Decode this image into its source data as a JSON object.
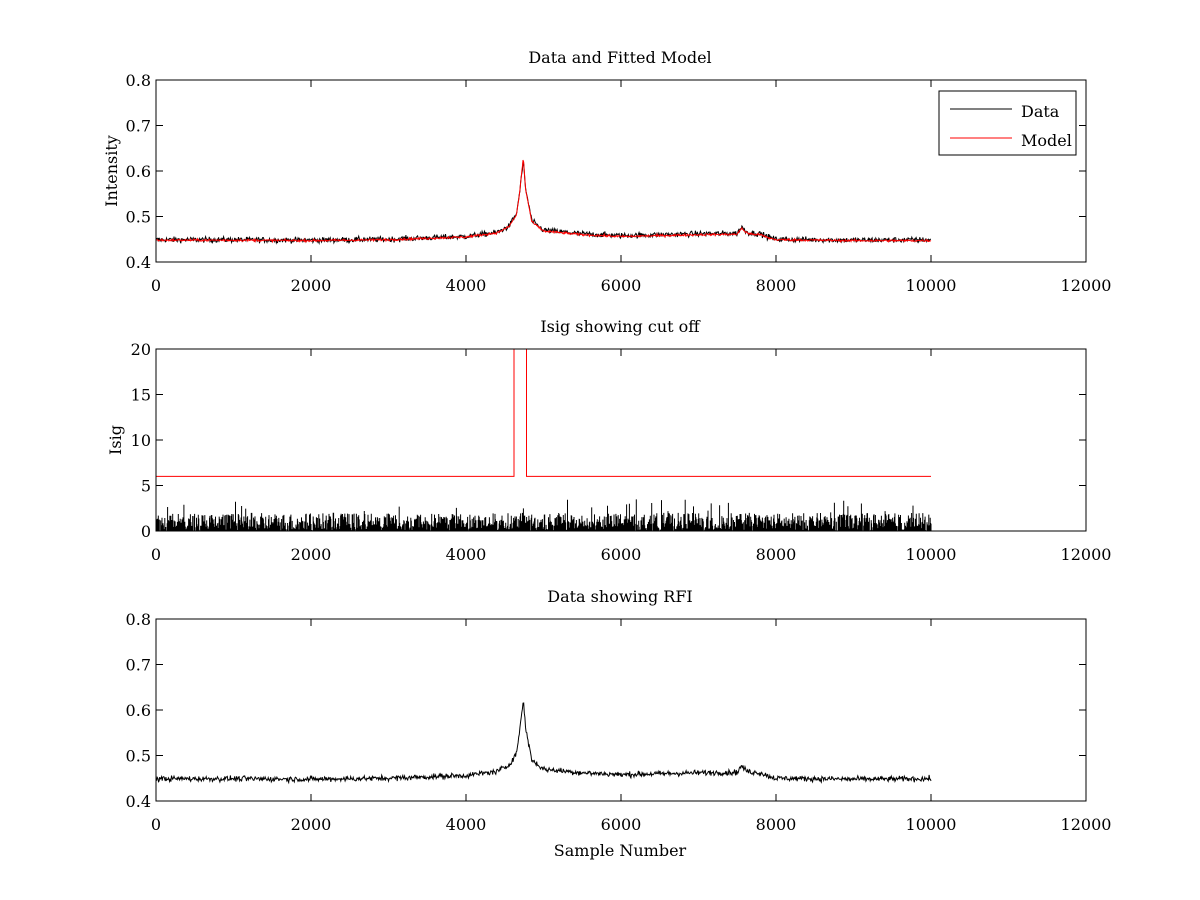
{
  "figure": {
    "background": "#ffffff",
    "data_color": "#000000",
    "model_color": "#ff0000"
  },
  "chart_data": [
    {
      "type": "line",
      "title": "Data and Fitted Model",
      "xlabel": "",
      "ylabel": "Intensity",
      "xlim": [
        0,
        12000
      ],
      "ylim": [
        0.4,
        0.8
      ],
      "xticks": [
        "0",
        "2000",
        "4000",
        "6000",
        "8000",
        "10000",
        "12000"
      ],
      "yticks": [
        "0.4",
        "0.5",
        "0.6",
        "0.7",
        "0.8"
      ],
      "grid": false,
      "legend": {
        "placement": "top-right",
        "entries": [
          "Data",
          "Model"
        ]
      },
      "series": [
        {
          "name": "Data",
          "color": "#000000",
          "style": "noisy",
          "noise": 0.006,
          "x": [
            0,
            1000,
            2000,
            3000,
            4000,
            4400,
            4550,
            4650,
            4690,
            4720,
            4740,
            4770,
            4850,
            5000,
            5500,
            6000,
            7000,
            7500,
            7560,
            7590,
            7650,
            7800,
            7900,
            8000,
            9000,
            10000
          ],
          "y": [
            0.449,
            0.449,
            0.448,
            0.45,
            0.456,
            0.465,
            0.478,
            0.505,
            0.55,
            0.595,
            0.62,
            0.56,
            0.49,
            0.47,
            0.462,
            0.458,
            0.462,
            0.463,
            0.478,
            0.47,
            0.464,
            0.462,
            0.455,
            0.45,
            0.448,
            0.449
          ]
        },
        {
          "name": "Model",
          "color": "#ff0000",
          "style": "smooth",
          "x": [
            0,
            1000,
            2000,
            3000,
            4000,
            4400,
            4550,
            4650,
            4690,
            4720,
            4740,
            4770,
            4850,
            5000,
            5500,
            6000,
            7000,
            7500,
            7560,
            7590,
            7650,
            7800,
            7900,
            8000,
            9000,
            10000
          ],
          "y": [
            0.448,
            0.448,
            0.447,
            0.449,
            0.455,
            0.464,
            0.477,
            0.503,
            0.548,
            0.6,
            0.628,
            0.558,
            0.488,
            0.468,
            0.46,
            0.456,
            0.46,
            0.461,
            0.475,
            0.468,
            0.462,
            0.46,
            0.453,
            0.449,
            0.447,
            0.447
          ]
        }
      ]
    },
    {
      "type": "line",
      "title": "Isig showing cut off",
      "xlabel": "",
      "ylabel": "Isig",
      "xlim": [
        0,
        12000
      ],
      "ylim": [
        0,
        20
      ],
      "xticks": [
        "0",
        "2000",
        "4000",
        "6000",
        "8000",
        "10000",
        "12000"
      ],
      "yticks": [
        "0",
        "5",
        "10",
        "15",
        "20"
      ],
      "grid": false,
      "series": [
        {
          "name": "Isig",
          "color": "#000000",
          "style": "spiky",
          "x_start": 0,
          "x_end": 10000,
          "typical_max": 2.0,
          "peak_max": 3.5
        },
        {
          "name": "Cut off",
          "color": "#ff0000",
          "style": "step",
          "x": [
            0,
            4620,
            4620,
            4780,
            4780,
            10000
          ],
          "y": [
            6,
            6,
            20,
            20,
            6,
            6
          ]
        }
      ]
    },
    {
      "type": "line",
      "title": "Data showing RFI",
      "xlabel": "Sample Number",
      "ylabel": "",
      "xlim": [
        0,
        12000
      ],
      "ylim": [
        0.4,
        0.8
      ],
      "xticks": [
        "0",
        "2000",
        "4000",
        "6000",
        "8000",
        "10000",
        "12000"
      ],
      "yticks": [
        "0.4",
        "0.5",
        "0.6",
        "0.7",
        "0.8"
      ],
      "grid": false,
      "series": [
        {
          "name": "Data",
          "color": "#000000",
          "style": "noisy",
          "noise": 0.006,
          "x": [
            0,
            1000,
            2000,
            3000,
            4000,
            4400,
            4550,
            4650,
            4690,
            4720,
            4740,
            4770,
            4850,
            5000,
            5500,
            6000,
            7000,
            7500,
            7560,
            7590,
            7650,
            7800,
            7900,
            8000,
            9000,
            10000
          ],
          "y": [
            0.449,
            0.449,
            0.448,
            0.45,
            0.456,
            0.465,
            0.478,
            0.505,
            0.55,
            0.595,
            0.62,
            0.56,
            0.49,
            0.47,
            0.462,
            0.458,
            0.462,
            0.463,
            0.478,
            0.47,
            0.464,
            0.462,
            0.455,
            0.45,
            0.448,
            0.449
          ]
        }
      ]
    }
  ]
}
